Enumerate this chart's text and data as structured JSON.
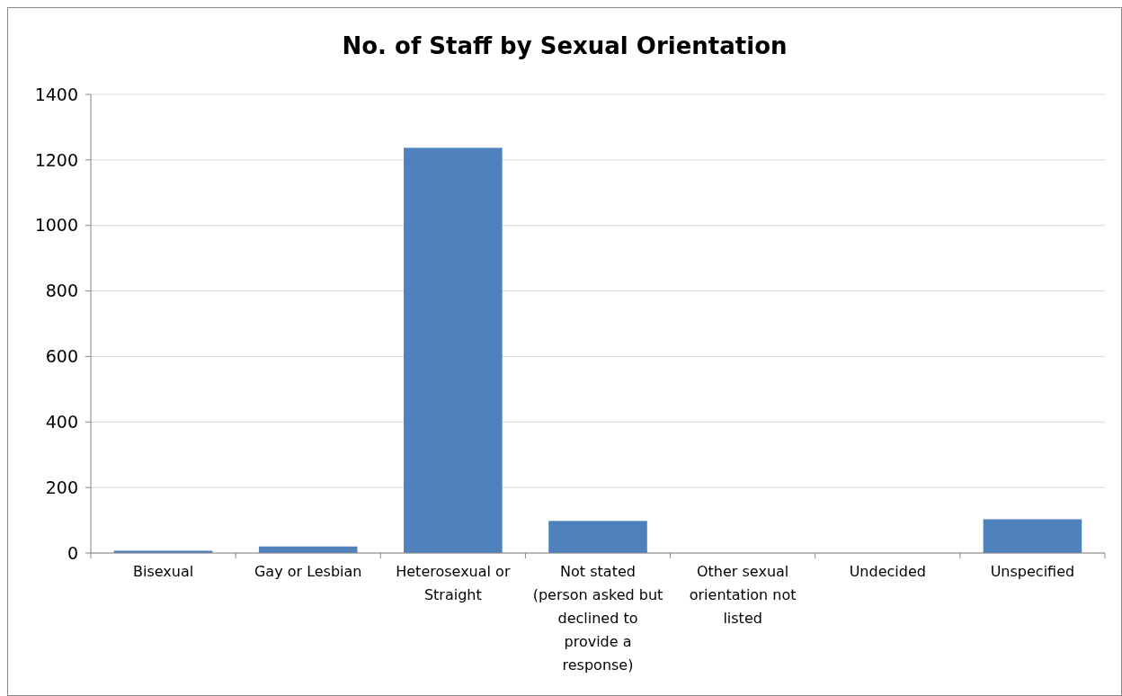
{
  "chart_data": {
    "type": "bar",
    "title": "No. of Staff by Sexual Orientation",
    "categories": [
      "Bisexual",
      "Gay or Lesbian",
      "Heterosexual or Straight",
      "Not stated (person asked but declined to provide a response)",
      "Other sexual orientation not listed",
      "Undecided",
      "Unspecified"
    ],
    "values": [
      7,
      20,
      1237,
      98,
      0,
      0,
      103
    ],
    "color": "#4f81bd",
    "ylim": [
      0,
      1400
    ],
    "yticks": [
      0,
      200,
      400,
      600,
      800,
      1000,
      1200,
      1400
    ],
    "grid": "y"
  }
}
